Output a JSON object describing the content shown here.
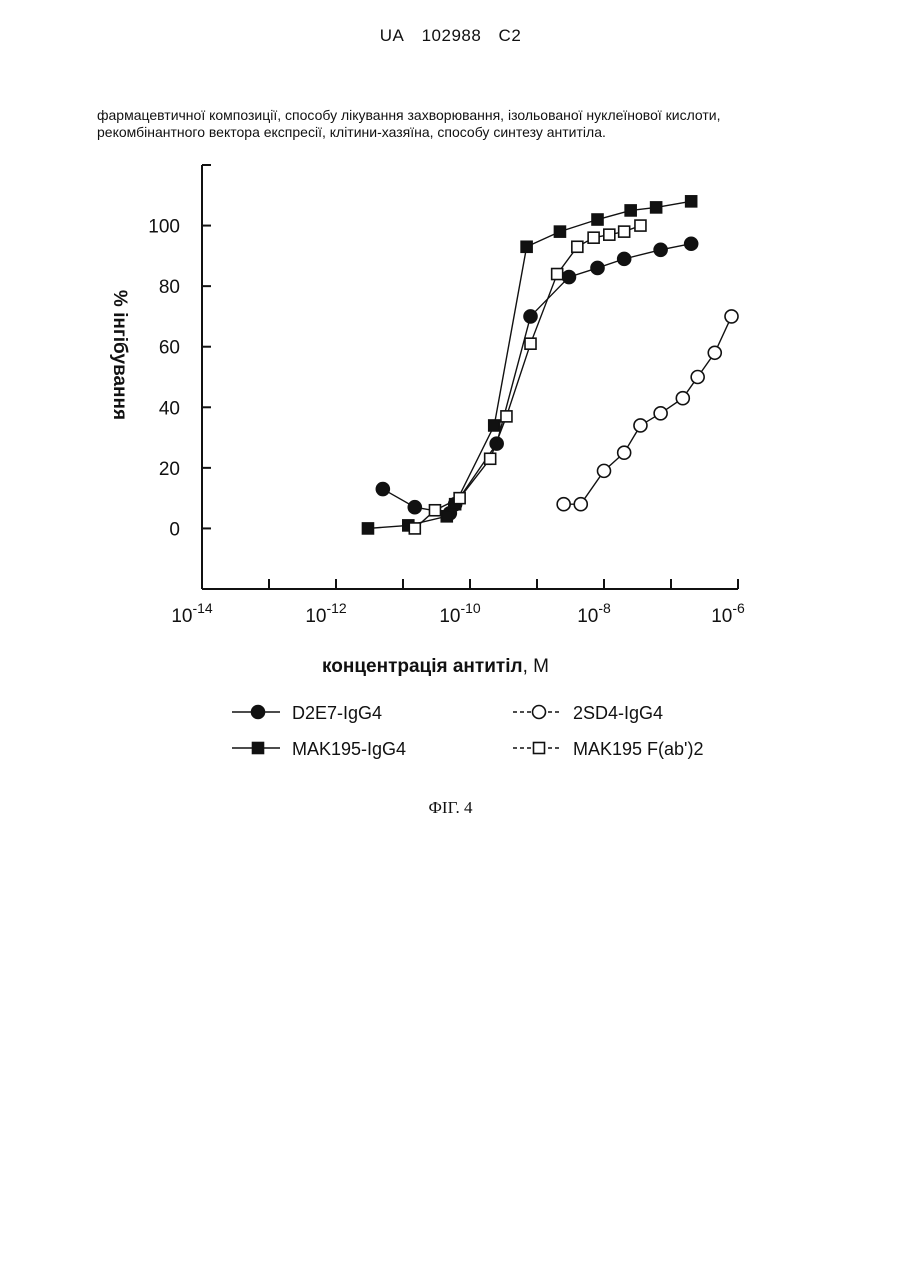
{
  "header": {
    "country": "UA",
    "number": "102988",
    "kind": "C2"
  },
  "intro_text": "фармацевтичної композиції, способу лікування захворювання, ізольованої нуклеїнової кислоти, рекомбінантного вектора експресії, клітини-хазяїна, способу синтезу антитіла.",
  "figure_caption": "ФІГ. 4",
  "chart_data": {
    "type": "scatter",
    "xscale": "log",
    "xlim": [
      1e-14,
      1e-06
    ],
    "ylim": [
      -20,
      120
    ],
    "x_ticks": [
      {
        "base": "10",
        "exp": "-14",
        "value": 1e-14
      },
      {
        "base": "10",
        "exp": "-12",
        "value": 1e-12
      },
      {
        "base": "10",
        "exp": "-10",
        "value": 1e-10
      },
      {
        "base": "10",
        "exp": "-8",
        "value": 1e-08
      },
      {
        "base": "10",
        "exp": "-6",
        "value": 1e-06
      }
    ],
    "y_ticks": [
      "0",
      "20",
      "40",
      "60",
      "80",
      "100"
    ],
    "xlabel": "концентрація антитіл",
    "xlabel_unit": ", М",
    "ylabel": "% інгібування",
    "legend_position": "bottom",
    "series": [
      {
        "name": "D2E7-IgG4",
        "marker": "circle",
        "filled": true,
        "x": [
          5e-12,
          1.5e-11,
          5e-11,
          6e-11,
          2.5e-10,
          8e-10,
          3e-09,
          8e-09,
          2e-08,
          7e-08,
          2e-07
        ],
        "y": [
          13,
          7,
          5,
          8,
          28,
          70,
          83,
          86,
          89,
          92,
          94
        ]
      },
      {
        "name": "MAK195-IgG4",
        "marker": "square",
        "filled": true,
        "x": [
          3e-12,
          1.2e-11,
          4.5e-11,
          6e-11,
          2.3e-10,
          7e-10,
          2.2e-09,
          8e-09,
          2.5e-08,
          6e-08,
          2e-07
        ],
        "y": [
          0,
          1,
          4,
          8,
          34,
          93,
          98,
          102,
          105,
          106,
          108
        ],
        "connect": [
          0,
          1,
          2,
          3,
          4,
          5,
          6,
          7,
          8,
          9,
          10
        ]
      },
      {
        "name": "2SD4-IgG4",
        "marker": "circle",
        "filled": false,
        "x": [
          2.5e-09,
          4.5e-09,
          1e-08,
          2e-08,
          3.5e-08,
          7e-08,
          1.5e-07,
          2.5e-07,
          4.5e-07,
          8e-07
        ],
        "y": [
          8,
          8,
          19,
          25,
          34,
          38,
          43,
          50,
          58,
          70
        ]
      },
      {
        "name": "MAK195 F(ab')2",
        "marker": "square",
        "filled": false,
        "x": [
          1.5e-11,
          3e-11,
          7e-11,
          2e-10,
          3.5e-10,
          8e-10,
          2e-09,
          4e-09,
          7e-09,
          1.2e-08,
          2e-08,
          3.5e-08
        ],
        "y": [
          0,
          6,
          10,
          23,
          37,
          61,
          84,
          93,
          96,
          97,
          98,
          100
        ]
      }
    ]
  }
}
